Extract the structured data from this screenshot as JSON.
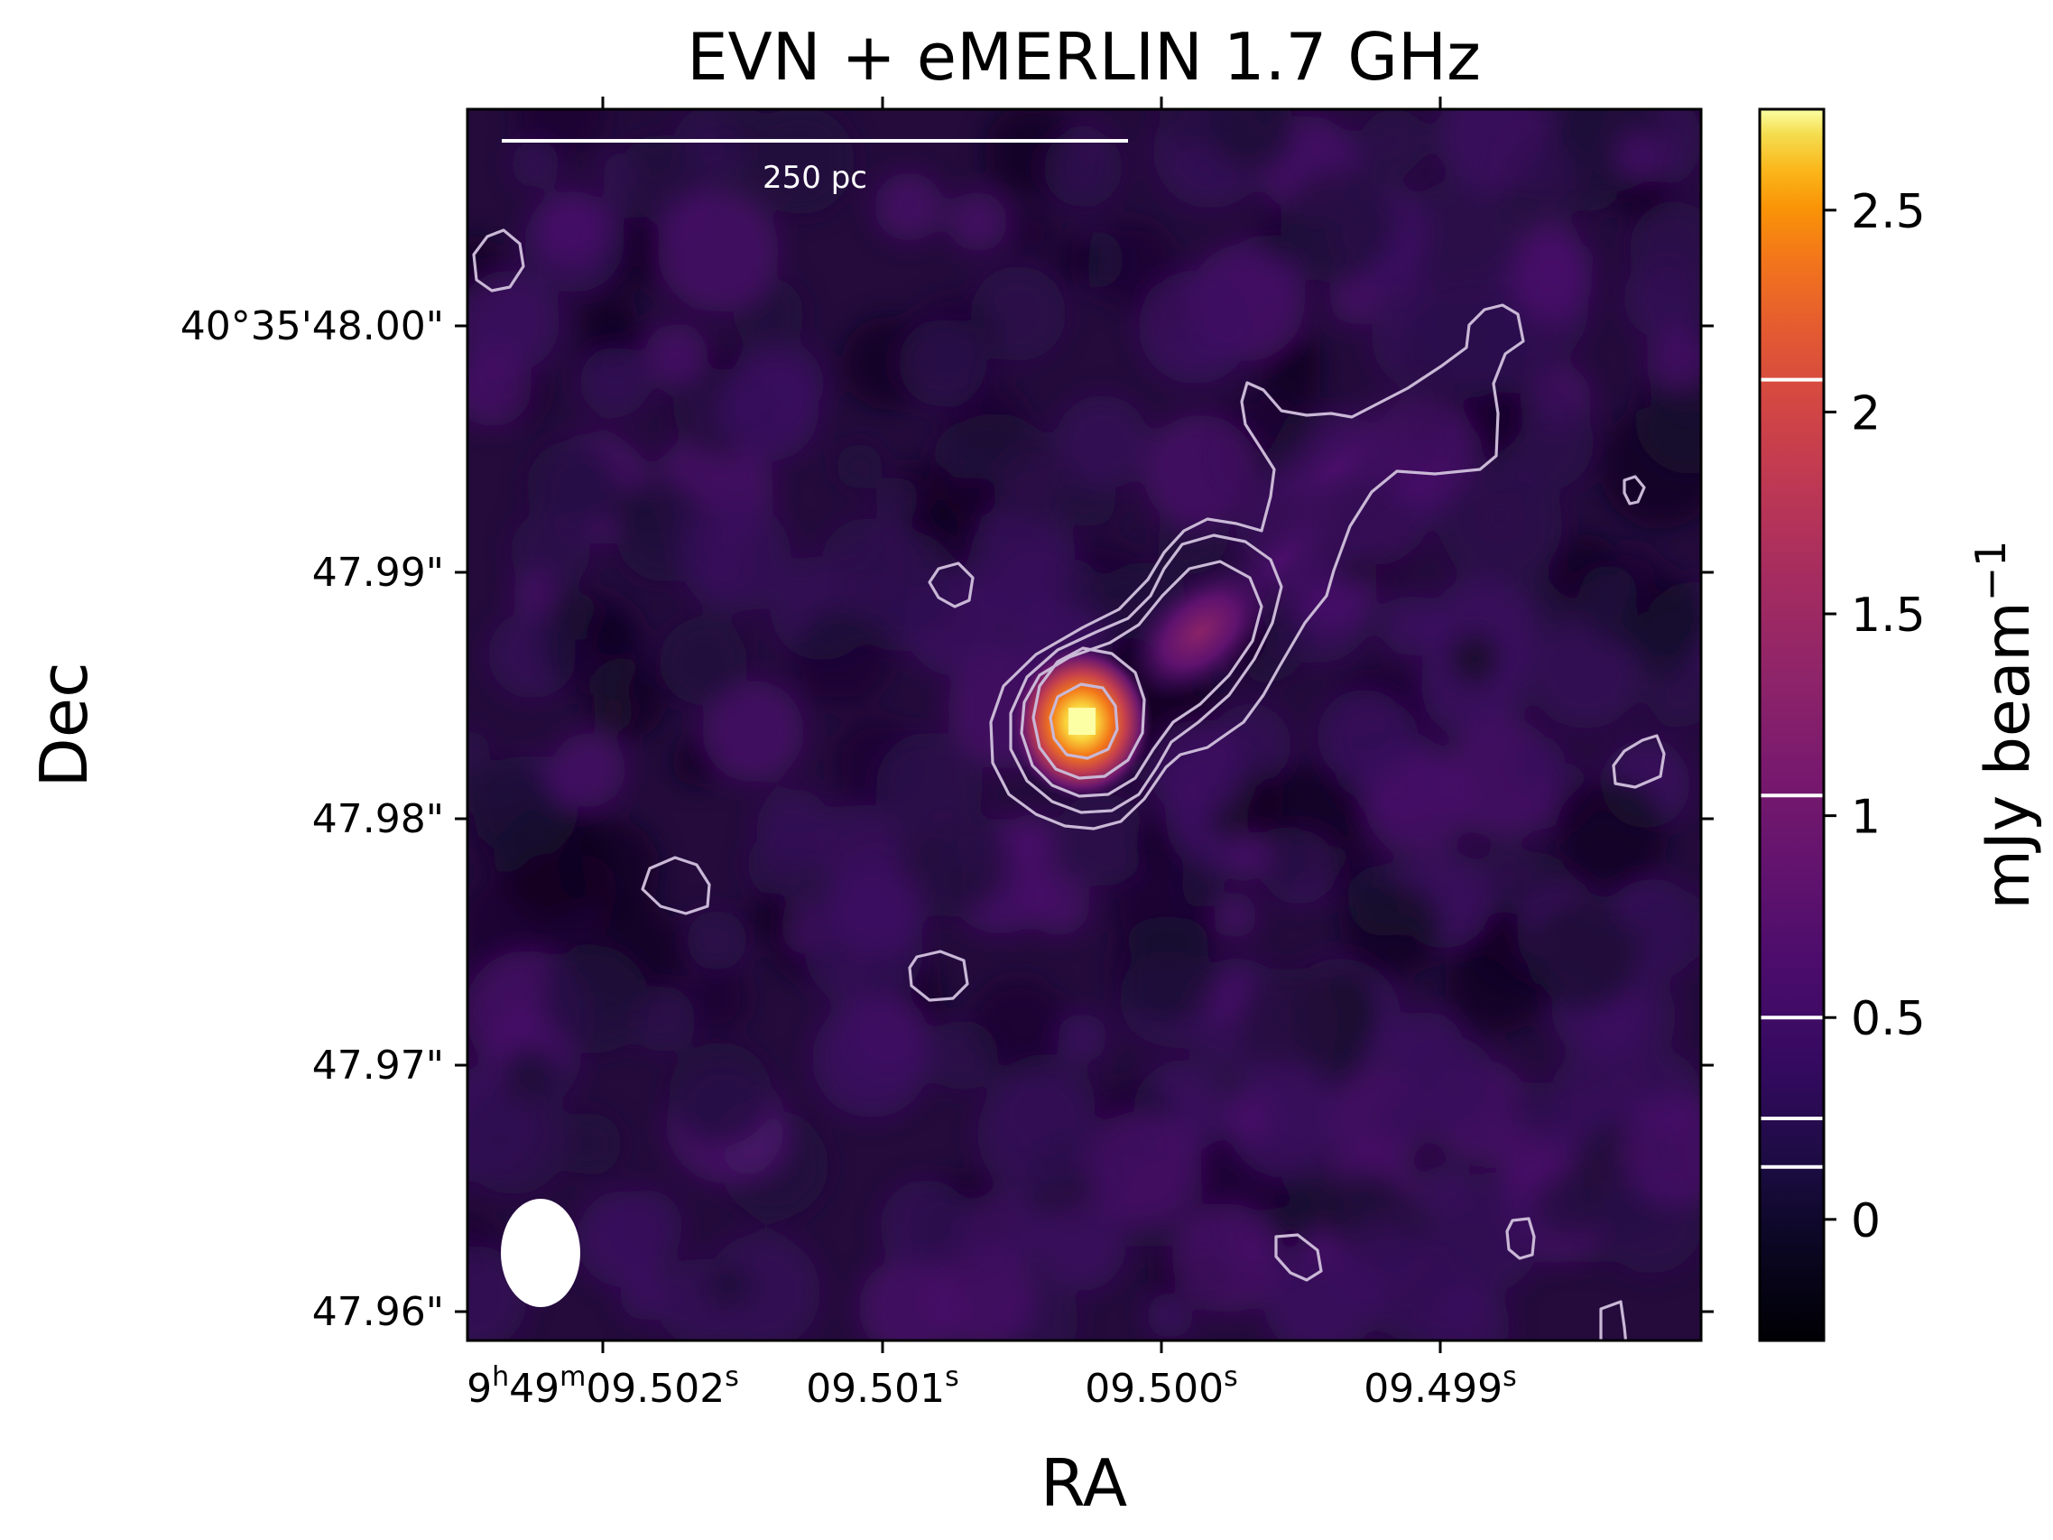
{
  "chart_data": {
    "type": "heatmap",
    "title": "EVN + eMERLIN 1.7 GHz",
    "xlabel": "RA",
    "ylabel": "Dec",
    "x_ticks": [
      {
        "prefix": "9",
        "sup1": "h",
        "mid": "49",
        "sup2": "m",
        "main": "09.502",
        "sup3": "s"
      },
      {
        "main": "09.501",
        "sup3": "s"
      },
      {
        "main": "09.500",
        "sup3": "s"
      },
      {
        "main": "09.499",
        "sup3": "s"
      }
    ],
    "y_ticks": [
      "40°35'48.00\"",
      "47.99\"",
      "47.98\"",
      "47.97\"",
      "47.96\""
    ],
    "colorbar": {
      "label": "mJy beam",
      "label_exponent": "−1",
      "range": [
        -0.3,
        2.75
      ],
      "ticks": [
        "0",
        "0.5",
        "1",
        "1.5",
        "2",
        "2.5"
      ],
      "tick_values": [
        0,
        0.5,
        1,
        1.5,
        2,
        2.5
      ],
      "contour_levels": [
        0.13,
        0.25,
        0.5,
        1.05,
        2.08
      ],
      "colormap": "inferno"
    },
    "scalebar_label": "250 pc",
    "peak_flux_mJy_per_beam": 2.7,
    "contour_color": "#c9b8d6",
    "background_color": "#2a0e44"
  }
}
